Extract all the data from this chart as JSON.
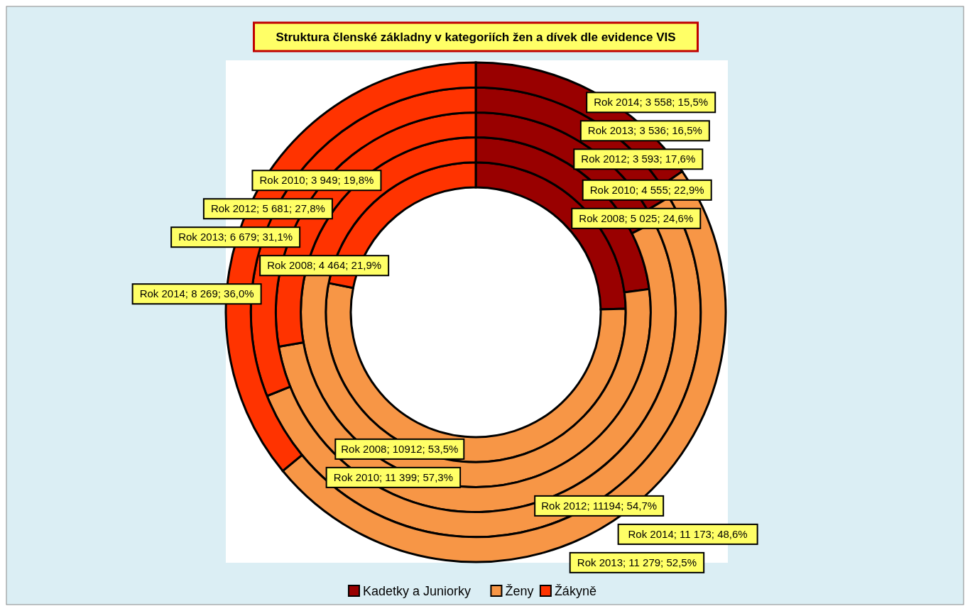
{
  "chart_data": {
    "type": "donut",
    "title": "Struktura členské základny  v kategoriích žen a dívek dle evidence VIS",
    "categories": [
      "Kadetky a Juniorky",
      "Ženy",
      "Žákyně"
    ],
    "colors": [
      "#990000",
      "#f79646",
      "#ff3300"
    ],
    "legend": "bottom",
    "series": [
      {
        "values": [
          5025,
          10912,
          4464
        ],
        "value_labels": [
          "Rok 2008; 5 025; 24,6%",
          "Rok 2008; 10912; 53,5%",
          "Rok 2008; 4 464; 21,9%"
        ]
      },
      {
        "values": [
          4555,
          11399,
          3949
        ],
        "value_labels": [
          "Rok 2010; 4 555; 22,9%",
          "Rok 2010; 11 399; 57,3%",
          "Rok 2010; 3 949; 19,8%"
        ]
      },
      {
        "values": [
          3593,
          11194,
          5681
        ],
        "value_labels": [
          "Rok 2012; 3 593; 17,6%",
          "Rok 2012; 11194; 54,7%",
          "Rok 2012; 5 681; 27,8%"
        ]
      },
      {
        "values": [
          3536,
          11279,
          6679
        ],
        "value_labels": [
          "Rok 2013; 3 536; 16,5%",
          "Rok 2013; 11 279; 52,5%",
          "Rok 2013; 6 679; 31,1%"
        ]
      },
      {
        "values": [
          3558,
          11173,
          8269
        ],
        "value_labels": [
          "Rok 2014; 3 558; 15,5%",
          "Rok 2014; 11 173;  48,6%",
          "Rok 2014; 8 269; 36,0%"
        ]
      }
    ]
  }
}
